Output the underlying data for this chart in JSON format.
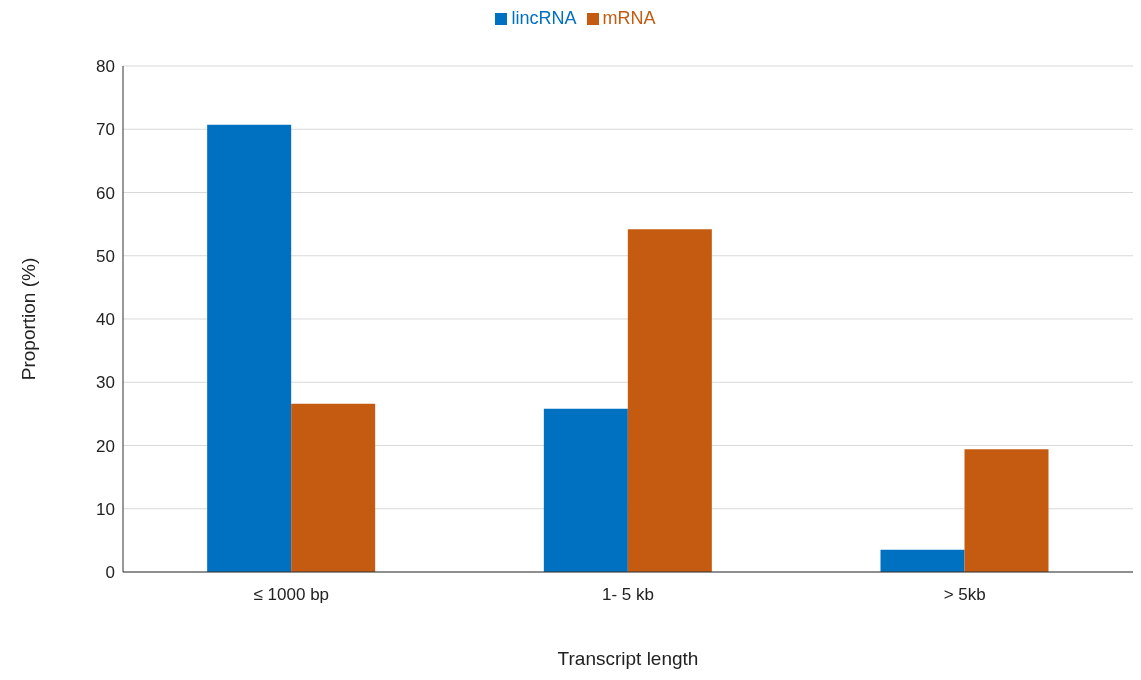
{
  "chart_data": {
    "type": "bar",
    "xlabel": "Transcript length",
    "ylabel": "Proportion (%)",
    "categories": [
      "≤ 1000 bp",
      "1- 5 kb",
      "> 5kb"
    ],
    "series": [
      {
        "name": "lincRNA",
        "color": "#0070c0",
        "values": [
          70.7,
          25.8,
          3.5
        ]
      },
      {
        "name": "mRNA",
        "color": "#c55a11",
        "values": [
          26.6,
          54.2,
          19.4
        ]
      }
    ],
    "ylim": [
      0,
      80
    ],
    "yticks": [
      0,
      10,
      20,
      30,
      40,
      50,
      60,
      70,
      80
    ],
    "grid": "y",
    "legend": "top"
  }
}
